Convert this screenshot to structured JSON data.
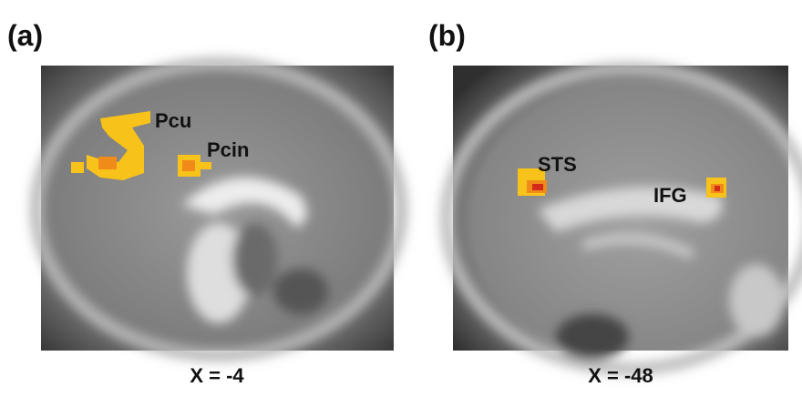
{
  "panels": [
    {
      "label": "(a)",
      "regions": [
        "Pcu",
        "Pcin"
      ],
      "coordinate": "X = -4"
    },
    {
      "label": "(b)",
      "regions": [
        "STS",
        "IFG"
      ],
      "coordinate": "X = -48"
    }
  ]
}
